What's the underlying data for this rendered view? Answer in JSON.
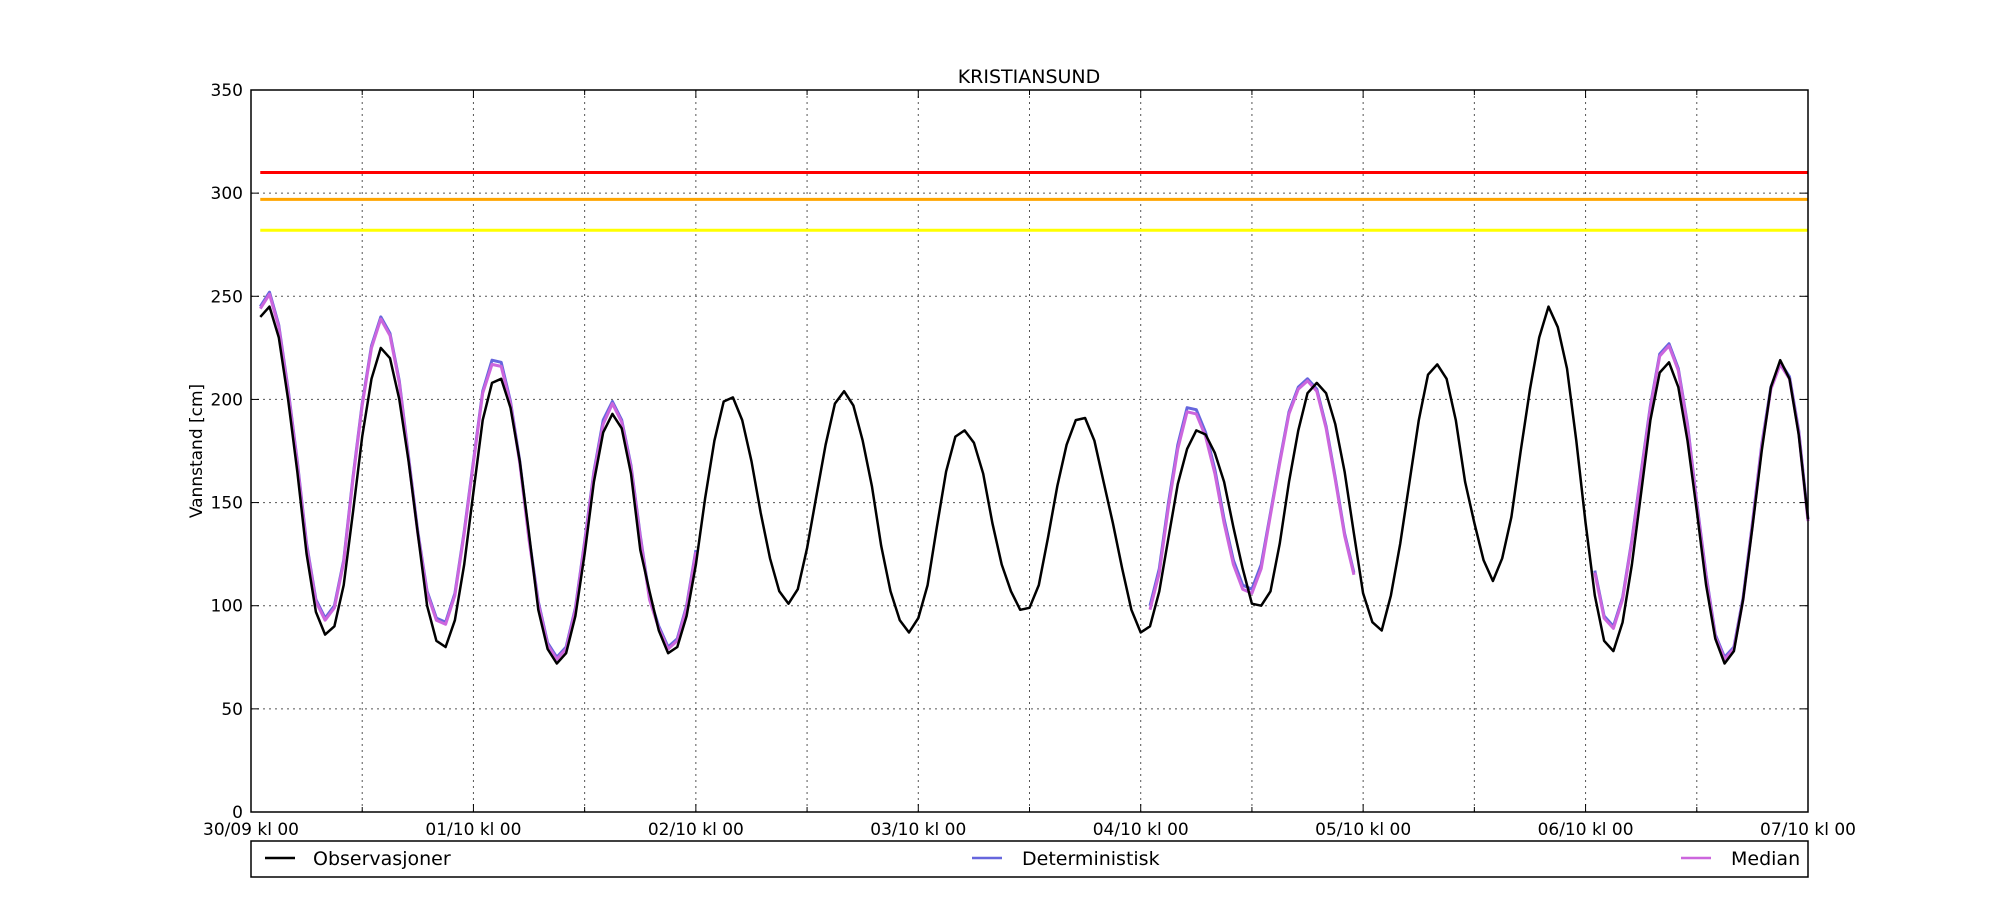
{
  "chart_data": {
    "type": "line",
    "title": "KRISTIANSUND",
    "xlabel": "",
    "ylabel": "Vannstand [cm]",
    "ylim": [
      0,
      350
    ],
    "xlim_hours": [
      0,
      168
    ],
    "y_ticks": [
      0,
      50,
      100,
      150,
      200,
      250,
      300,
      350
    ],
    "x_ticks": [
      {
        "h": 0,
        "label": "30/09 kl 00"
      },
      {
        "h": 24,
        "label": "01/10 kl 00"
      },
      {
        "h": 48,
        "label": "02/10 kl 00"
      },
      {
        "h": 72,
        "label": "03/10 kl 00"
      },
      {
        "h": 96,
        "label": "04/10 kl 00"
      },
      {
        "h": 120,
        "label": "05/10 kl 00"
      },
      {
        "h": 144,
        "label": "06/10 kl 00"
      },
      {
        "h": 168,
        "label": "07/10 kl 00"
      }
    ],
    "x_minor_ticks_hours": [
      12,
      36,
      60,
      84,
      108,
      132,
      156
    ],
    "grid": true,
    "legend_position": "bottom",
    "thresholds": [
      {
        "value": 310,
        "color": "#ff0000"
      },
      {
        "value": 297,
        "color": "#ffa500"
      },
      {
        "value": 282,
        "color": "#ffff00"
      }
    ],
    "series": [
      {
        "name": "Observasjoner",
        "color": "#000000",
        "x_start_hours": 1,
        "x_step_hours": 1,
        "values": [
          240,
          245,
          230,
          200,
          165,
          125,
          97,
          86,
          90,
          110,
          145,
          182,
          210,
          225,
          220,
          200,
          170,
          135,
          100,
          83,
          80,
          93,
          120,
          155,
          190,
          208,
          210,
          196,
          170,
          135,
          98,
          79,
          72,
          77,
          95,
          125,
          160,
          184,
          193,
          186,
          164,
          127,
          107,
          88,
          77,
          80,
          95,
          120,
          152,
          180,
          199,
          201,
          190,
          170,
          145,
          123,
          107,
          101,
          108,
          128,
          153,
          178,
          198,
          204,
          197,
          180,
          158,
          129,
          107,
          93,
          87,
          94,
          110,
          138,
          165,
          182,
          185,
          179,
          164,
          140,
          120,
          107,
          98,
          99,
          110,
          133,
          158,
          178,
          190,
          191,
          180,
          160,
          140,
          118,
          98,
          87,
          90,
          107,
          133,
          159,
          176,
          185,
          183,
          174,
          160,
          138,
          118,
          101,
          100,
          107,
          130,
          160,
          185,
          203,
          208,
          203,
          188,
          165,
          135,
          106,
          92,
          88,
          105,
          130,
          160,
          190,
          212,
          217,
          210,
          190,
          160,
          140,
          122,
          112,
          123,
          143,
          175,
          205,
          230,
          245,
          235,
          215,
          180,
          140,
          105,
          83,
          78,
          92,
          120,
          155,
          190,
          213,
          218,
          206,
          180,
          146,
          110,
          84,
          72,
          78,
          103,
          138,
          175,
          206,
          219,
          210,
          183,
          142
        ]
      },
      {
        "name": "Deterministisk",
        "color": "#6666dd",
        "segments": [
          {
            "x_start_hours": 1,
            "x_step_hours": 1,
            "values": [
              245,
              252,
              236,
              205,
              170,
              130,
              103,
              94,
              100,
              122,
              162,
              198,
              226,
              240,
              232,
              209,
              172,
              136,
              107,
              94,
              92,
              106,
              136,
              170,
              204,
              219,
              218,
              199,
              170,
              133,
              102,
              82,
              75,
              80,
              99,
              131,
              165,
              190,
              199,
              190,
              168,
              134,
              104,
              90,
              80,
              84,
              100,
              127
            ]
          },
          {
            "x_start_hours": 97,
            "x_step_hours": 1,
            "values": [
              100,
              118,
              150,
              178,
              196,
              195,
              184,
              166,
              142,
              122,
              110,
              108,
              120,
              145,
              170,
              194,
              206,
              210,
              205,
              187,
              162,
              135,
              116
            ]
          },
          {
            "x_start_hours": 145,
            "x_step_hours": 1,
            "values": [
              117,
              95,
              90,
              104,
              132,
              165,
              197,
              222,
              227,
              215,
              188,
              150,
              115,
              86,
              75,
              80,
              104,
              140,
              178,
              206,
              218,
              211,
              185,
              142
            ]
          }
        ]
      },
      {
        "name": "Median",
        "color": "#cc66dd",
        "segments": [
          {
            "x_start_hours": 1,
            "x_step_hours": 1,
            "values": [
              244,
              251,
              235,
              204,
              169,
              129,
              102,
              93,
              99,
              121,
              161,
              197,
              225,
              239,
              231,
              208,
              171,
              135,
              106,
              93,
              91,
              105,
              135,
              169,
              203,
              217,
              216,
              198,
              169,
              132,
              101,
              81,
              74,
              79,
              98,
              130,
              164,
              188,
              198,
              189,
              167,
              133,
              103,
              89,
              79,
              83,
              99,
              126
            ]
          },
          {
            "x_start_hours": 97,
            "x_step_hours": 1,
            "values": [
              98,
              116,
              148,
              176,
              194,
              193,
              182,
              164,
              140,
              120,
              108,
              106,
              118,
              144,
              169,
              193,
              205,
              209,
              204,
              186,
              161,
              134,
              115
            ]
          },
          {
            "x_start_hours": 145,
            "x_step_hours": 1,
            "values": [
              116,
              94,
              89,
              103,
              131,
              164,
              196,
              221,
              226,
              214,
              187,
              149,
              114,
              85,
              74,
              79,
              103,
              139,
              177,
              205,
              217,
              210,
              184,
              141
            ]
          }
        ]
      }
    ]
  }
}
